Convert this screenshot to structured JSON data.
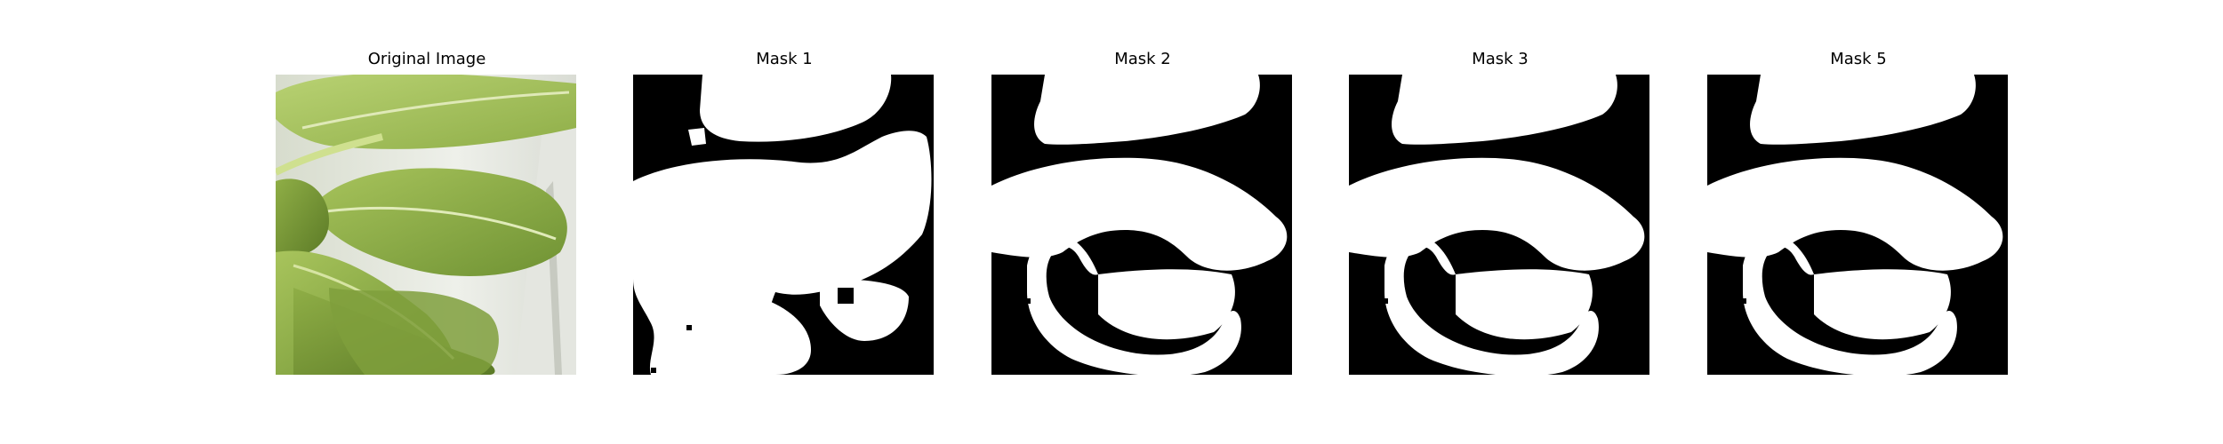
{
  "panels": [
    {
      "title": "Original Image"
    },
    {
      "title": "Mask 1"
    },
    {
      "title": "Mask 2"
    },
    {
      "title": "Mask 3"
    },
    {
      "title": "Mask 5"
    }
  ],
  "colors": {
    "mask_background": "#000000",
    "mask_foreground": "#ffffff",
    "leaf_light": "#c7d98a",
    "leaf_mid": "#9fbe58",
    "leaf_dark": "#5f7f2c",
    "backdrop": "#e9ece4"
  }
}
